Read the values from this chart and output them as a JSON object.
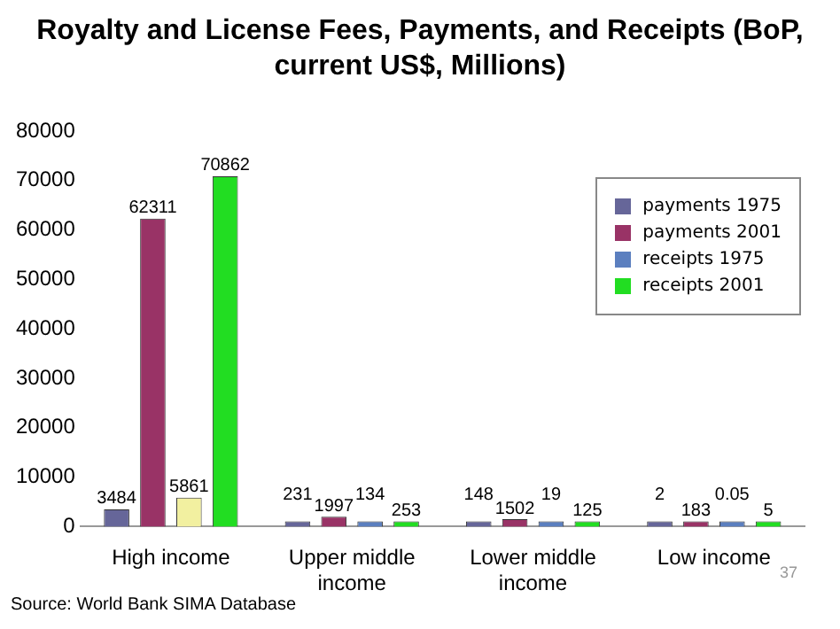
{
  "chart_data": {
    "type": "bar",
    "title": "Royalty and License Fees, Payments, and Receipts (BoP, current US$, Millions)",
    "categories": [
      "High income",
      "Upper middle income",
      "Lower middle income",
      "Low income"
    ],
    "series": [
      {
        "name": "payments 1975",
        "color": "#666699",
        "values": [
          3484,
          231,
          148,
          2
        ]
      },
      {
        "name": "payments 2001",
        "color": "#993366",
        "values": [
          62311,
          1997,
          1502,
          183
        ]
      },
      {
        "name": "receipts 1975",
        "color": "#5b7fbf",
        "colors": [
          "#f2f0a0",
          "#5b7fbf",
          "#5b7fbf",
          "#5b7fbf"
        ],
        "values": [
          5861,
          134,
          19,
          0.05
        ]
      },
      {
        "name": "receipts 2001",
        "color": "#22dd22",
        "values": [
          70862,
          253,
          125,
          5
        ]
      }
    ],
    "ylim": [
      0,
      80000
    ],
    "yticks": [
      0,
      10000,
      20000,
      30000,
      40000,
      50000,
      60000,
      70000,
      80000
    ],
    "grid": false,
    "legend": "top right",
    "data_labels": true,
    "annotations": [
      "Source: World Bank SIMA Database",
      "37"
    ]
  }
}
